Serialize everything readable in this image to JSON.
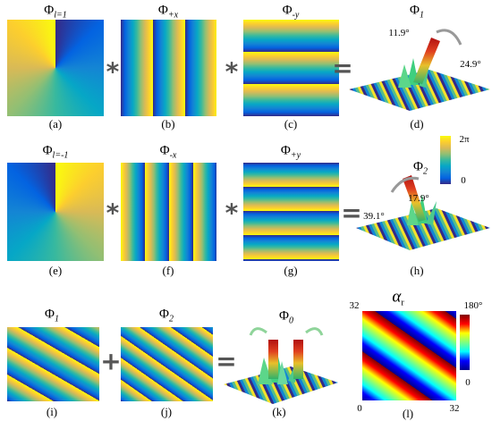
{
  "panels": [
    {
      "symbol": "Φ",
      "sub": "l=1",
      "caption": "(a)"
    },
    {
      "symbol": "Φ",
      "sub": "+x",
      "caption": "(b)"
    },
    {
      "symbol": "Φ",
      "sub": "-y",
      "caption": "(c)"
    },
    {
      "symbol": "Φ",
      "sub": "1",
      "caption": "(d)",
      "angles": [
        "11.9°",
        "24.9°"
      ]
    },
    {
      "symbol": "Φ",
      "sub": "l=-1",
      "caption": "(e)"
    },
    {
      "symbol": "Φ",
      "sub": "-x",
      "caption": "(f)"
    },
    {
      "symbol": "Φ",
      "sub": "+y",
      "caption": "(g)"
    },
    {
      "symbol": "Φ",
      "sub": "2",
      "caption": "(h)",
      "angles": [
        "39.1°",
        "17.9°"
      ]
    },
    {
      "symbol": "Φ",
      "sub": "1",
      "caption": "(i)"
    },
    {
      "symbol": "Φ",
      "sub": "2",
      "caption": "(j)"
    },
    {
      "symbol": "Φ",
      "sub": "0",
      "caption": "(k)"
    },
    {
      "symbol": "α",
      "sub": "r",
      "caption": "(l)",
      "corner_labels": [
        "32",
        "0",
        "32"
      ],
      "colorbar": [
        "180°",
        "0"
      ]
    }
  ],
  "operators": [
    "*",
    "*",
    "=",
    "*",
    "*",
    "=",
    "+",
    "="
  ],
  "phase_colorbar": [
    "2π",
    "0"
  ]
}
